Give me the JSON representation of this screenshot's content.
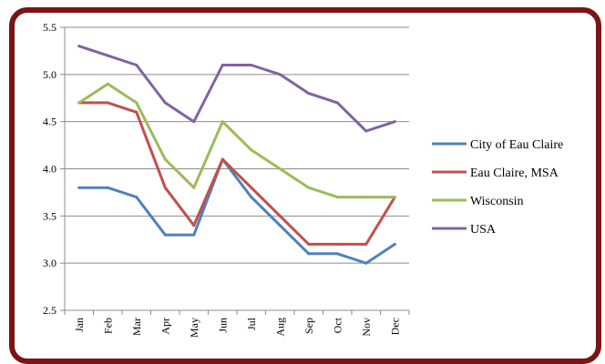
{
  "chart_data": {
    "type": "line",
    "title": "",
    "xlabel": "",
    "ylabel": "",
    "categories": [
      "Jan",
      "Feb",
      "Mar",
      "Apr",
      "May",
      "Jun",
      "Jul",
      "Aug",
      "Sep",
      "Oct",
      "Nov",
      "Dec"
    ],
    "ylim": [
      2.5,
      5.5
    ],
    "yticks": [
      "2.5",
      "3.0",
      "3.5",
      "4.0",
      "4.5",
      "5.0",
      "5.5"
    ],
    "grid": true,
    "legend_position": "right",
    "series": [
      {
        "name": "City of Eau Claire",
        "color": "#4f81bd",
        "values": [
          3.8,
          3.8,
          3.7,
          3.3,
          3.3,
          4.1,
          3.7,
          3.4,
          3.1,
          3.1,
          3.0,
          3.2
        ]
      },
      {
        "name": "Eau Claire, MSA",
        "color": "#c0504d",
        "values": [
          4.7,
          4.7,
          4.6,
          3.8,
          3.4,
          4.1,
          3.8,
          3.5,
          3.2,
          3.2,
          3.2,
          3.7
        ]
      },
      {
        "name": "Wisconsin",
        "color": "#9bbb59",
        "values": [
          4.7,
          4.9,
          4.7,
          4.1,
          3.8,
          4.5,
          4.2,
          4.0,
          3.8,
          3.7,
          3.7,
          3.7
        ]
      },
      {
        "name": "USA",
        "color": "#8064a2",
        "values": [
          5.3,
          5.2,
          5.1,
          4.7,
          4.5,
          5.1,
          5.1,
          5.0,
          4.8,
          4.7,
          4.4,
          4.5
        ]
      }
    ],
    "frame_color": "#7b1416"
  }
}
